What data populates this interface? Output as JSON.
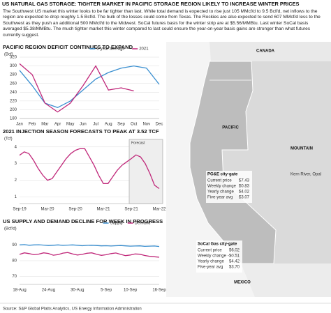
{
  "header": {
    "title": "US NATURAL GAS STORAGE: TIGHTER MARKET IN PACIFIC STORAGE REGION LIKELY TO INCREASE WINTER PRICES",
    "intro": "The Southwest US market this winter looks to be far tighter than last. While total demand is expected to rise just 105 MMcf/d to 9.5 Bcf/d, net inflows to the region are expected to drop roughly 1.5 Bcf/d. The bulk of the losses could come from Texas. The Rockies are also expected to send 607 MMcf/d less to the Southwest as they push an additional 500 MMcf/d to the Midwest. SoCal futures basis for the winter strip are at $5.56/MMBtu. Last winter SoCal basis averaged $5.38/MMBtu. The much tighter market this winter compared to last could ensure the year-on-year basis gains are stronger than what futures currently suggest."
  },
  "chart_data": [
    {
      "type": "line",
      "title": "PACIFIC REGION DEFICIT CONTINUES TO EXPAND",
      "y_label": "(Bcf)",
      "categories": [
        "Jan",
        "Feb",
        "Mar",
        "Apr",
        "May",
        "Jun",
        "Jul",
        "Aug",
        "Sep",
        "Oct",
        "Nov",
        "Dec"
      ],
      "series": [
        {
          "name": "5-year average",
          "color": "#3a8fd0",
          "values": [
            290,
            255,
            215,
            205,
            220,
            245,
            270,
            285,
            295,
            300,
            295,
            258
          ]
        },
        {
          "name": "2021",
          "color": "#c0287a",
          "values": [
            305,
            280,
            215,
            195,
            215,
            255,
            300,
            245,
            250,
            243,
            null,
            null
          ]
        }
      ],
      "ylim": [
        180,
        320
      ],
      "yticks": [
        180,
        200,
        220,
        240,
        260,
        280,
        300,
        320
      ],
      "grid": true,
      "legend": "top"
    },
    {
      "type": "line",
      "title": "2021 INJECTION SEASON FORECASTS TO PEAK AT 3.52 TCF",
      "y_label": "(Tcf)",
      "categories": [
        "Sep-19",
        null,
        null,
        null,
        null,
        null,
        "Mar-20",
        null,
        null,
        null,
        null,
        null,
        "Sep-20",
        null,
        null,
        null,
        null,
        null,
        "Mar-21",
        null,
        null,
        null,
        null,
        null,
        "Sep-21",
        null,
        null,
        null,
        null,
        null,
        "Mar-22"
      ],
      "series": [
        {
          "name": null,
          "color": "#c0287a",
          "values": [
            3.5,
            3.7,
            3.6,
            3.2,
            2.7,
            2.3,
            2.0,
            2.1,
            2.5,
            2.9,
            3.3,
            3.6,
            3.8,
            3.9,
            3.9,
            3.4,
            2.9,
            2.3,
            1.8,
            1.8,
            2.2,
            2.6,
            2.9,
            3.1,
            3.3,
            3.52,
            3.4,
            3.0,
            2.4,
            1.7,
            1.5
          ]
        }
      ],
      "ylim": [
        0.6,
        4.2
      ],
      "yticks": [
        1,
        2,
        3,
        4
      ],
      "grid": true,
      "annotation": "Forecast"
    },
    {
      "type": "line",
      "title": "US SUPPLY AND DEMAND DECLINE FOR WEEK IN PROGRESS",
      "y_label": "(Bcf/d)",
      "categories": [
        "18-Aug",
        null,
        null,
        null,
        null,
        null,
        "24-Aug",
        null,
        null,
        null,
        null,
        null,
        "30-Aug",
        null,
        null,
        null,
        null,
        null,
        "5-Sep",
        null,
        null,
        null,
        null,
        "10-Sep",
        null,
        null,
        null,
        null,
        null,
        "16-Sep"
      ],
      "series": [
        {
          "name": "Supply",
          "color": "#3a8fd0",
          "values": [
            90,
            90.2,
            89.8,
            90,
            90.1,
            89.9,
            89.6,
            89.8,
            90,
            89.7,
            89.9,
            90,
            89.8,
            89.5,
            89.7,
            89.8,
            89.6,
            89.4,
            89.5,
            89.3,
            89.5,
            89.6,
            89.4,
            89.2,
            89.3,
            89.4,
            89.1,
            89.2,
            89.3,
            89
          ]
        },
        {
          "name": "Demand",
          "color": "#c0287a",
          "values": [
            84,
            85,
            84.5,
            83.8,
            84.2,
            85,
            84.6,
            83.5,
            83.9,
            84.8,
            85.2,
            84.3,
            83.6,
            84,
            84.7,
            85,
            84.1,
            83.4,
            83.8,
            84.5,
            84.9,
            84,
            83.2,
            83.6,
            84.3,
            84.1,
            83.3,
            82.8,
            82.5,
            82.2
          ]
        }
      ],
      "ylim": [
        65,
        95
      ],
      "yticks": [
        70,
        80,
        90
      ],
      "grid": true,
      "legend": "top"
    }
  ],
  "map": {
    "canada": "CANADA",
    "pacific": "PACIFIC",
    "mountain": "MOUNTAIN",
    "mexico": "MEXICO",
    "pipeline": "Kern River, Opal",
    "pge": {
      "title": "PG&E city-gate",
      "rows": [
        [
          "Current price",
          "$7.43"
        ],
        [
          "Weekly change",
          "$0.83"
        ],
        [
          "Yearly change",
          "$4.02"
        ],
        [
          "Five-year avg",
          "$3.07"
        ]
      ]
    },
    "socal": {
      "title": "SoCal Gas city-gate",
      "rows": [
        [
          "Current price",
          "$6.02"
        ],
        [
          "Weekly change",
          "-$0.51"
        ],
        [
          "Yearly change",
          "$4.42"
        ],
        [
          "Five-year avg",
          "$3.70"
        ]
      ]
    }
  },
  "source": "Source: S&P Global Platts Analytics, US Energy Information Administration"
}
